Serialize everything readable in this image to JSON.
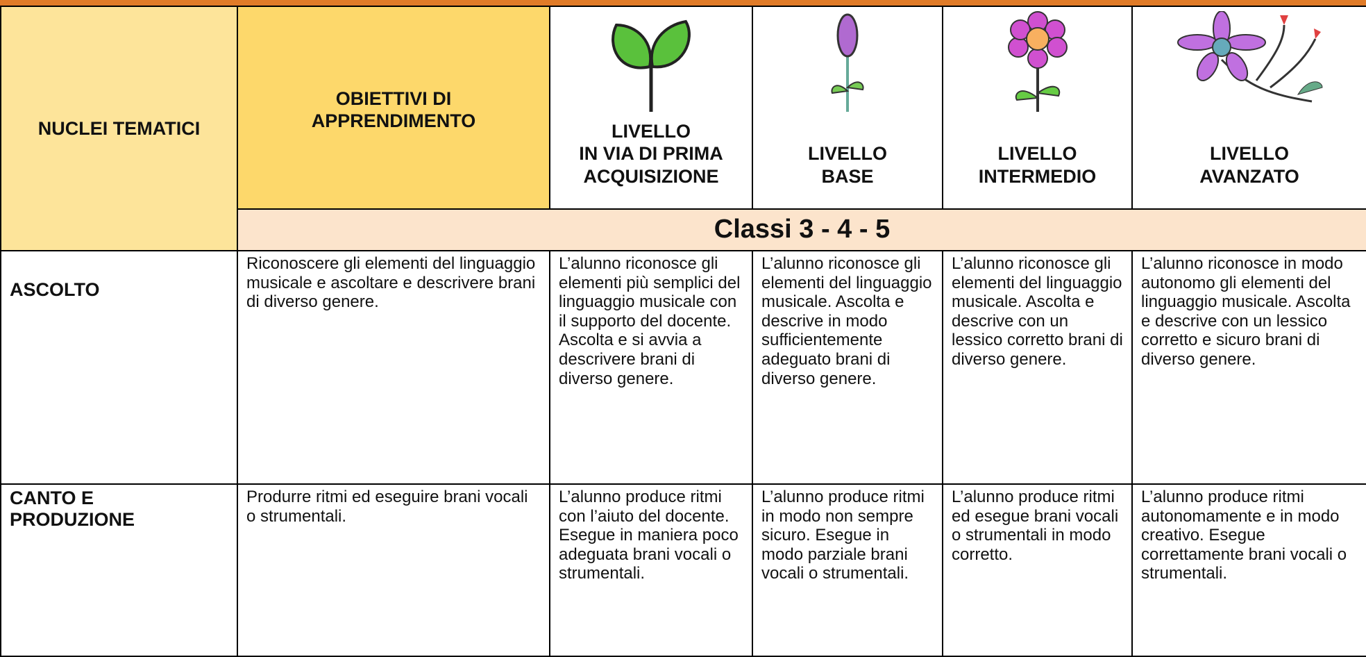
{
  "table": {
    "header": {
      "nuclei": "NUCLEI TEMATICI",
      "obiettivi": "OBIETTIVI DI\nAPPRENDIMENTO",
      "levels": [
        "LIVELLO\nIN VIA DI PRIMA\nACQUISIZIONE",
        "LIVELLO\nBASE",
        "LIVELLO\nINTERMEDIO",
        "LIVELLO\nAVANZATO"
      ]
    },
    "classi": "Classi 3 - 4 - 5",
    "rows": [
      [
        "ASCOLTO",
        "Riconoscere gli elementi del linguaggio musicale e ascoltare e descrivere brani di diverso genere.",
        "L’alunno riconosce gli elementi più semplici del linguaggio musicale con il supporto del docente. Ascolta e si avvia a descrivere brani di diverso genere.",
        "L’alunno riconosce gli elementi del linguaggio musicale. Ascolta e descrive in modo sufficientemente adeguato brani di diverso genere.",
        "L’alunno riconosce gli elementi del linguaggio musicale. Ascolta e descrive con un lessico corretto brani di diverso genere.",
        "L’alunno riconosce in modo autonomo gli elementi del linguaggio musicale. Ascolta e descrive con un lessico corretto e sicuro brani di diverso genere."
      ],
      [
        "CANTO E\nPRODUZIONE",
        "Produrre ritmi ed eseguire brani vocali o strumentali.",
        "L’alunno produce ritmi con l’aiuto del docente. Esegue in maniera poco adeguata brani vocali o strumentali.",
        "L’alunno produce ritmi in modo non sempre sicuro. Esegue in modo parziale brani vocali o strumentali.",
        "L’alunno produce ritmi ed esegue brani vocali o strumentali in modo corretto.",
        "L’alunno produce ritmi autonomamente e in modo creativo. Esegue correttamente brani vocali o strumentali."
      ]
    ]
  }
}
